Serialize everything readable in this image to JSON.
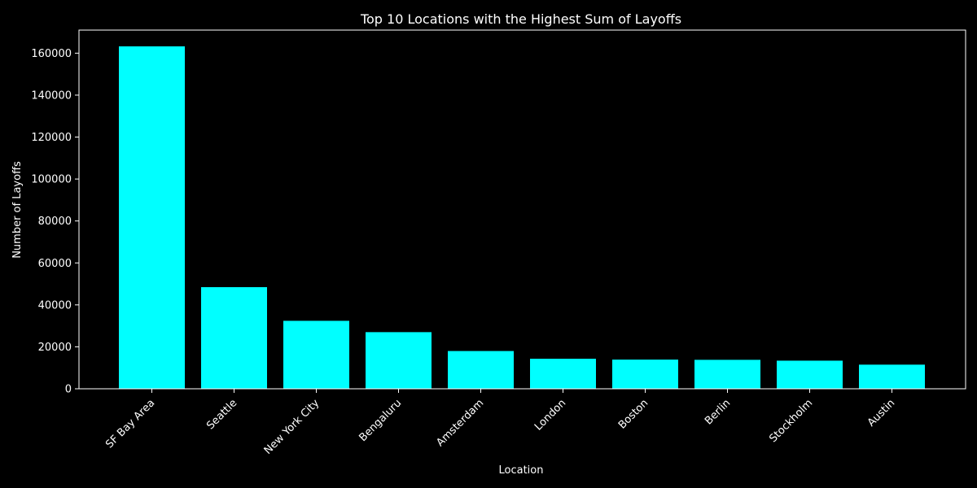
{
  "chart_data": {
    "type": "bar",
    "title": "Top 10 Locations with the Highest Sum of Layoffs",
    "xlabel": "Location",
    "ylabel": "Number of Layoffs",
    "categories": [
      "SF Bay Area",
      "Seattle",
      "New York City",
      "Bengaluru",
      "Amsterdam",
      "London",
      "Boston",
      "Berlin",
      "Stockholm",
      "Austin"
    ],
    "values": [
      163250,
      48450,
      32400,
      27000,
      18000,
      14300,
      13900,
      13800,
      13400,
      11500
    ],
    "ylim": [
      0,
      171000
    ],
    "yticks": [
      0,
      20000,
      40000,
      60000,
      80000,
      100000,
      120000,
      140000,
      160000
    ],
    "grid": false,
    "legend": "none",
    "colors": {
      "background": "#000000",
      "bar": "#00ffff",
      "axis": "#ffffff",
      "text": "#ffffff"
    }
  }
}
